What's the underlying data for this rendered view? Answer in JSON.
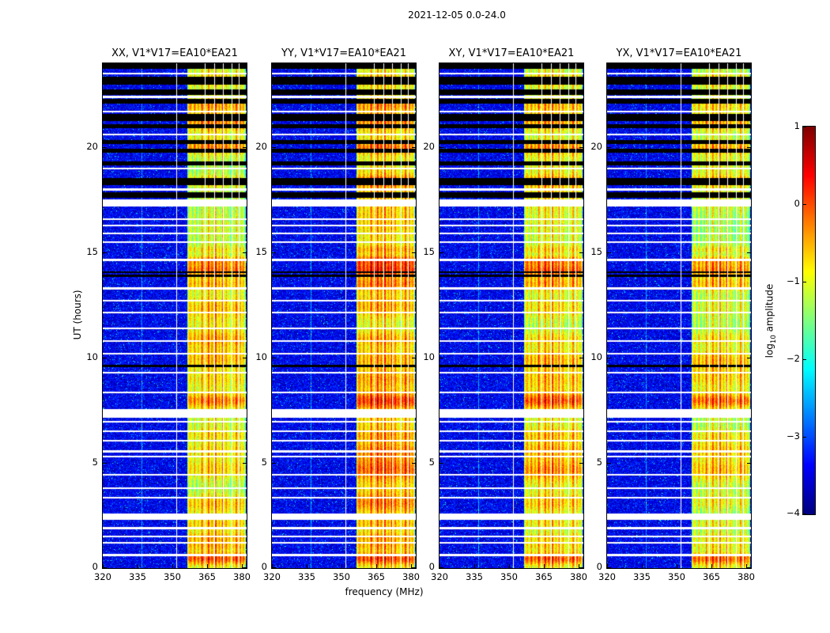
{
  "figure": {
    "title": "2021-12-05 0.0-24.0",
    "xlabel": "frequency (MHz)",
    "ylabel": "UT (hours)",
    "background_color": "#ffffff"
  },
  "chart_data": {
    "type": "heatmap",
    "title": "2021-12-05 0.0-24.0",
    "xlabel": "frequency (MHz)",
    "ylabel": "UT (hours)",
    "xlim": [
      320,
      382
    ],
    "ylim": [
      0,
      24
    ],
    "x_ticks": [
      320,
      335,
      350,
      365,
      380
    ],
    "y_ticks": [
      0,
      5,
      10,
      15,
      20
    ],
    "grid": false,
    "colormap": "jet",
    "value_range": [
      -4,
      1
    ],
    "colorbar": {
      "label": "log10 amplitude",
      "label_parts": {
        "pre": "log",
        "sub": "10",
        "post": " amplitude"
      },
      "ticks": [
        1,
        0,
        -1,
        -2,
        -3,
        -4
      ],
      "position": "right"
    },
    "panels": [
      {
        "title": "XX, V1*V17=EA10*EA21",
        "seed": 11,
        "band_gain": 1.0
      },
      {
        "title": "YY, V1*V17=EA10*EA21",
        "seed": 23,
        "band_gain": 1.18
      },
      {
        "title": "XY, V1*V17=EA10*EA21",
        "seed": 37,
        "band_gain": 1.05
      },
      {
        "title": "YX, V1*V17=EA10*EA21",
        "seed": 51,
        "band_gain": 0.95
      }
    ],
    "features": {
      "background_level": -3.45,
      "noise_spread": 0.45,
      "speckle_prob": 0.05,
      "rfi_band": {
        "start_mhz": 356.5,
        "end_mhz": 381.5,
        "base_level": -1.85
      },
      "band_stripes": [
        {
          "mhz": 357.2,
          "strength": 0.35
        },
        {
          "mhz": 358.0,
          "strength": 0.5
        },
        {
          "mhz": 359.6,
          "strength": 0.7
        },
        {
          "mhz": 361.2,
          "strength": 0.55
        },
        {
          "mhz": 362.8,
          "strength": 0.85
        },
        {
          "mhz": 364.2,
          "strength": 0.6
        },
        {
          "mhz": 365.6,
          "strength": 0.9
        },
        {
          "mhz": 367.1,
          "strength": 0.7
        },
        {
          "mhz": 368.7,
          "strength": 0.95
        },
        {
          "mhz": 370.2,
          "strength": 0.6
        },
        {
          "mhz": 371.7,
          "strength": 0.9
        },
        {
          "mhz": 373.2,
          "strength": 0.7
        },
        {
          "mhz": 374.6,
          "strength": 0.45
        },
        {
          "mhz": 376.2,
          "strength": 0.5
        },
        {
          "mhz": 377.6,
          "strength": 0.85
        },
        {
          "mhz": 379.2,
          "strength": 0.65
        },
        {
          "mhz": 380.6,
          "strength": 0.5
        }
      ],
      "white_columns_mhz": [
        351.8,
        363.8,
        368.2,
        371.9,
        375.4,
        378.7
      ],
      "faint_columns_mhz": [
        336.8
      ],
      "white_rows": [
        [
          0.62,
          0.08
        ],
        [
          1.2,
          0.08
        ],
        [
          1.52,
          0.08
        ],
        [
          1.9,
          0.08
        ],
        [
          2.45,
          0.3
        ],
        [
          3.35,
          0.1
        ],
        [
          3.8,
          0.08
        ],
        [
          4.45,
          0.08
        ],
        [
          5.3,
          0.08
        ],
        [
          5.55,
          0.08
        ],
        [
          6.05,
          0.08
        ],
        [
          6.5,
          0.08
        ],
        [
          6.95,
          0.08
        ],
        [
          7.35,
          0.4
        ],
        [
          8.35,
          0.08
        ],
        [
          9.3,
          0.08
        ],
        [
          10.2,
          0.08
        ],
        [
          10.8,
          0.08
        ],
        [
          11.4,
          0.08
        ],
        [
          12.15,
          0.08
        ],
        [
          12.7,
          0.08
        ],
        [
          13.3,
          0.08
        ],
        [
          14.65,
          0.08
        ],
        [
          15.5,
          0.08
        ],
        [
          15.9,
          0.08
        ],
        [
          16.3,
          0.08
        ],
        [
          16.6,
          0.08
        ],
        [
          17.35,
          0.35
        ],
        [
          18.0,
          0.08
        ],
        [
          19.0,
          0.1
        ],
        [
          20.6,
          0.08
        ],
        [
          21.7,
          0.08
        ],
        [
          22.4,
          0.1
        ],
        [
          23.5,
          0.08
        ]
      ],
      "black_rows": [
        [
          9.55,
          9.65
        ],
        [
          13.85,
          13.95
        ],
        [
          14.02,
          14.1
        ],
        [
          17.6,
          17.85
        ],
        [
          18.2,
          18.55
        ],
        [
          19.15,
          19.35
        ],
        [
          19.75,
          19.95
        ],
        [
          20.15,
          20.35
        ],
        [
          20.9,
          21.1
        ],
        [
          21.25,
          21.6
        ],
        [
          22.1,
          22.3
        ],
        [
          22.5,
          22.75
        ],
        [
          23.0,
          23.35
        ],
        [
          23.75,
          24.0
        ]
      ],
      "bursts": [
        {
          "t": 0.45,
          "w": 0.3,
          "s": 1.2
        },
        {
          "t": 1.05,
          "w": 0.2,
          "s": 0.5
        },
        {
          "t": 1.45,
          "w": 0.25,
          "s": 0.6
        },
        {
          "t": 2.1,
          "w": 0.3,
          "s": 0.45
        },
        {
          "t": 3.1,
          "w": 0.4,
          "s": 0.5
        },
        {
          "t": 4.7,
          "w": 0.5,
          "s": 0.65
        },
        {
          "t": 5.6,
          "w": 0.4,
          "s": 0.6
        },
        {
          "t": 6.3,
          "w": 0.3,
          "s": 0.4
        },
        {
          "t": 7.95,
          "w": 0.35,
          "s": 1.0
        },
        {
          "t": 9.0,
          "w": 0.4,
          "s": 0.4
        },
        {
          "t": 9.9,
          "w": 0.5,
          "s": 0.6
        },
        {
          "t": 10.9,
          "w": 0.4,
          "s": 0.55
        },
        {
          "t": 12.4,
          "w": 0.5,
          "s": 0.35
        },
        {
          "t": 13.5,
          "w": 0.3,
          "s": 0.7
        },
        {
          "t": 14.2,
          "w": 0.35,
          "s": 1.1
        },
        {
          "t": 14.65,
          "w": 0.2,
          "s": 0.8
        },
        {
          "t": 15.15,
          "w": 0.2,
          "s": 0.5
        },
        {
          "t": 18.4,
          "w": 0.25,
          "s": 0.7
        },
        {
          "t": 20.0,
          "w": 0.3,
          "s": 0.8
        },
        {
          "t": 21.2,
          "w": 0.4,
          "s": 0.7
        },
        {
          "t": 22.0,
          "w": 0.3,
          "s": 0.5
        },
        {
          "t": 23.2,
          "w": 0.25,
          "s": 0.6
        }
      ]
    }
  }
}
